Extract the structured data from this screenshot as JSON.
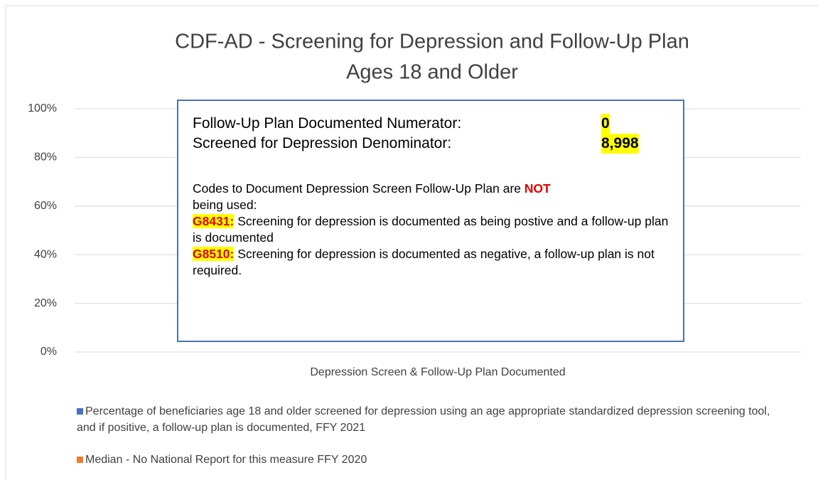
{
  "chart_data": {
    "type": "bar",
    "title": "CDF-AD - Screening for Depression and Follow-Up Plan",
    "subtitle": "Ages 18 and Older",
    "categories": [
      "Depression Screen & Follow-Up Plan Documented"
    ],
    "series": [
      {
        "name": "Percentage of beneficiaries age 18 and older screened for depression using an age appropriate standardized depression screening tool, and if positive, a follow-up plan is documented, FFY 2021",
        "color": "#4472c4",
        "values": [
          0
        ]
      },
      {
        "name": "Median - No National Report for this measure FFY 2020",
        "color": "#ed7d31",
        "values": [
          null
        ]
      }
    ],
    "ylim": [
      0,
      100
    ],
    "yticks": [
      {
        "value": 0,
        "label": "0%"
      },
      {
        "value": 20,
        "label": "20%"
      },
      {
        "value": 40,
        "label": "40%"
      },
      {
        "value": 60,
        "label": "60%"
      },
      {
        "value": 80,
        "label": "80%"
      },
      {
        "value": 100,
        "label": "100%"
      }
    ],
    "grid": true,
    "legend": "bottom",
    "annotation": {
      "numerator_label": "Follow-Up Plan Documented Numerator:",
      "numerator_value": "0",
      "denominator_label": "Screened for Depression Denominator:",
      "denominator_value": "8,998",
      "codes_intro": "Codes to Document Depression Screen Follow-Up Plan are",
      "codes_not": "NOT",
      "codes_outro": "being used:",
      "code1": "G8431:",
      "code1_text": "Screening for depression is documented as being postive and a follow-up plan is documented",
      "code2": "G8510:",
      "code2_text": "Screening for depression is documented as negative, a follow-up plan is not required."
    }
  }
}
